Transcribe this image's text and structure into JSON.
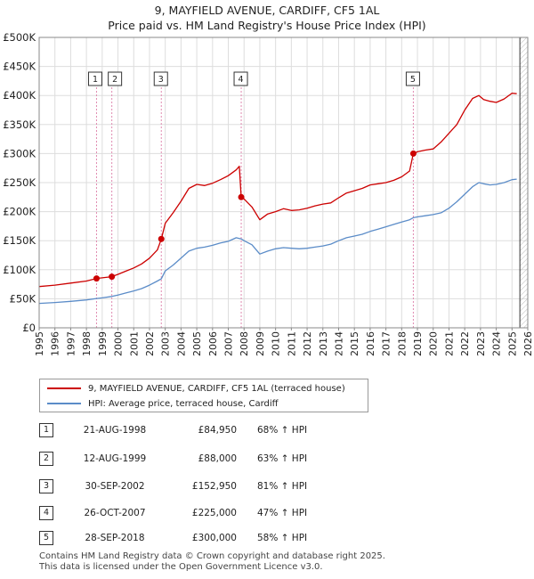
{
  "title": "9, MAYFIELD AVENUE, CARDIFF, CF5 1AL",
  "subtitle": "Price paid vs. HM Land Registry's House Price Index (HPI)",
  "colors": {
    "property": "#cc0000",
    "hpi": "#5b8cc8",
    "marker_line": "#e08ab0",
    "grid": "#dddddd"
  },
  "legend": {
    "property_label": "9, MAYFIELD AVENUE, CARDIFF, CF5 1AL (terraced house)",
    "hpi_label": "HPI: Average price, terraced house, Cardiff"
  },
  "sales": [
    {
      "num": "1",
      "date": "21-AUG-1998",
      "price": "£84,950",
      "hpi": "68% ↑ HPI"
    },
    {
      "num": "2",
      "date": "12-AUG-1999",
      "price": "£88,000",
      "hpi": "63% ↑ HPI"
    },
    {
      "num": "3",
      "date": "30-SEP-2002",
      "price": "£152,950",
      "hpi": "81% ↑ HPI"
    },
    {
      "num": "4",
      "date": "26-OCT-2007",
      "price": "£225,000",
      "hpi": "47% ↑ HPI"
    },
    {
      "num": "5",
      "date": "28-SEP-2018",
      "price": "£300,000",
      "hpi": "58% ↑ HPI"
    }
  ],
  "footer": {
    "line1": "Contains HM Land Registry data © Crown copyright and database right 2025.",
    "line2": "This data is licensed under the Open Government Licence v3.0."
  },
  "chart_data": {
    "type": "line",
    "title": "9, MAYFIELD AVENUE, CARDIFF, CF5 1AL",
    "subtitle": "Price paid vs. HM Land Registry's House Price Index (HPI)",
    "xlim": [
      1995,
      2026
    ],
    "ylim": [
      0,
      500000
    ],
    "x_ticks": [
      1995,
      1996,
      1997,
      1998,
      1999,
      2000,
      2001,
      2002,
      2003,
      2004,
      2005,
      2006,
      2007,
      2008,
      2009,
      2010,
      2011,
      2012,
      2013,
      2014,
      2015,
      2016,
      2017,
      2018,
      2019,
      2020,
      2021,
      2022,
      2023,
      2024,
      2025,
      2026
    ],
    "y_ticks": [
      0,
      50000,
      100000,
      150000,
      200000,
      250000,
      300000,
      350000,
      400000,
      450000,
      500000
    ],
    "y_tick_labels": [
      "£0",
      "£50K",
      "£100K",
      "£150K",
      "£200K",
      "£250K",
      "£300K",
      "£350K",
      "£400K",
      "£450K",
      "£500K"
    ],
    "grid": true,
    "future_hatch_from": 2025.5,
    "series": [
      {
        "name": "9, MAYFIELD AVENUE, CARDIFF, CF5 1AL (terraced house)",
        "x": [
          1995.0,
          1996.0,
          1997.0,
          1998.0,
          1998.64,
          1999.0,
          1999.61,
          2000.0,
          2000.5,
          2001.0,
          2001.5,
          2002.0,
          2002.5,
          2002.75,
          2003.0,
          2003.5,
          2004.0,
          2004.5,
          2005.0,
          2005.5,
          2006.0,
          2006.5,
          2007.0,
          2007.5,
          2007.7,
          2007.82,
          2008.0,
          2008.5,
          2009.0,
          2009.5,
          2010.0,
          2010.5,
          2011.0,
          2011.5,
          2012.0,
          2012.5,
          2013.0,
          2013.5,
          2014.0,
          2014.5,
          2015.0,
          2015.5,
          2016.0,
          2016.5,
          2017.0,
          2017.5,
          2018.0,
          2018.5,
          2018.74,
          2019.0,
          2019.5,
          2020.0,
          2020.5,
          2021.0,
          2021.5,
          2022.0,
          2022.5,
          2022.9,
          2023.2,
          2023.6,
          2024.0,
          2024.5,
          2025.0,
          2025.3
        ],
        "y": [
          71000,
          73500,
          77000,
          80500,
          84950,
          86000,
          88000,
          92000,
          97500,
          103000,
          110000,
          120000,
          134000,
          152950,
          180000,
          198000,
          218000,
          240000,
          247000,
          245000,
          249000,
          255000,
          262000,
          272000,
          278000,
          225000,
          222000,
          208000,
          186000,
          196000,
          200000,
          205000,
          202000,
          203000,
          206000,
          210000,
          213000,
          215000,
          224000,
          232000,
          236000,
          240000,
          246000,
          248000,
          250000,
          254000,
          260000,
          270000,
          300000,
          303000,
          306000,
          308000,
          320000,
          335000,
          350000,
          375000,
          395000,
          400000,
          393000,
          390000,
          388000,
          394000,
          404000,
          403000
        ]
      },
      {
        "name": "HPI: Average price, terraced house, Cardiff",
        "x": [
          1995.0,
          1996.0,
          1997.0,
          1998.0,
          1998.64,
          1999.0,
          1999.61,
          2000.0,
          2000.5,
          2001.0,
          2001.5,
          2002.0,
          2002.5,
          2002.75,
          2003.0,
          2003.5,
          2004.0,
          2004.5,
          2005.0,
          2005.5,
          2006.0,
          2006.5,
          2007.0,
          2007.5,
          2007.82,
          2008.0,
          2008.5,
          2009.0,
          2009.5,
          2010.0,
          2010.5,
          2011.0,
          2011.5,
          2012.0,
          2012.5,
          2013.0,
          2013.5,
          2014.0,
          2014.5,
          2015.0,
          2015.5,
          2016.0,
          2016.5,
          2017.0,
          2017.5,
          2018.0,
          2018.5,
          2018.74,
          2019.0,
          2019.5,
          2020.0,
          2020.5,
          2021.0,
          2021.5,
          2022.0,
          2022.5,
          2022.9,
          2023.2,
          2023.6,
          2024.0,
          2024.5,
          2025.0,
          2025.3
        ],
        "y": [
          42000,
          43500,
          45500,
          48000,
          50500,
          51500,
          54000,
          56500,
          60000,
          63500,
          67500,
          73500,
          80500,
          84500,
          98000,
          108000,
          120000,
          132000,
          137000,
          139000,
          142000,
          146000,
          149000,
          155000,
          153000,
          150000,
          143000,
          127000,
          132000,
          136000,
          138000,
          137000,
          136000,
          137000,
          139000,
          141000,
          144000,
          150000,
          155000,
          158000,
          161000,
          166000,
          170000,
          174000,
          178000,
          182000,
          186000,
          189500,
          191000,
          193000,
          195000,
          198000,
          206000,
          217000,
          230000,
          243000,
          250000,
          248000,
          246000,
          247000,
          250000,
          255000,
          256000
        ]
      }
    ],
    "sale_markers": [
      {
        "label": "1",
        "x": 1998.64,
        "y": 84950
      },
      {
        "label": "2",
        "x": 1999.61,
        "y": 88000
      },
      {
        "label": "3",
        "x": 2002.75,
        "y": 152950
      },
      {
        "label": "4",
        "x": 2007.82,
        "y": 225000
      },
      {
        "label": "5",
        "x": 2018.74,
        "y": 300000
      }
    ]
  }
}
